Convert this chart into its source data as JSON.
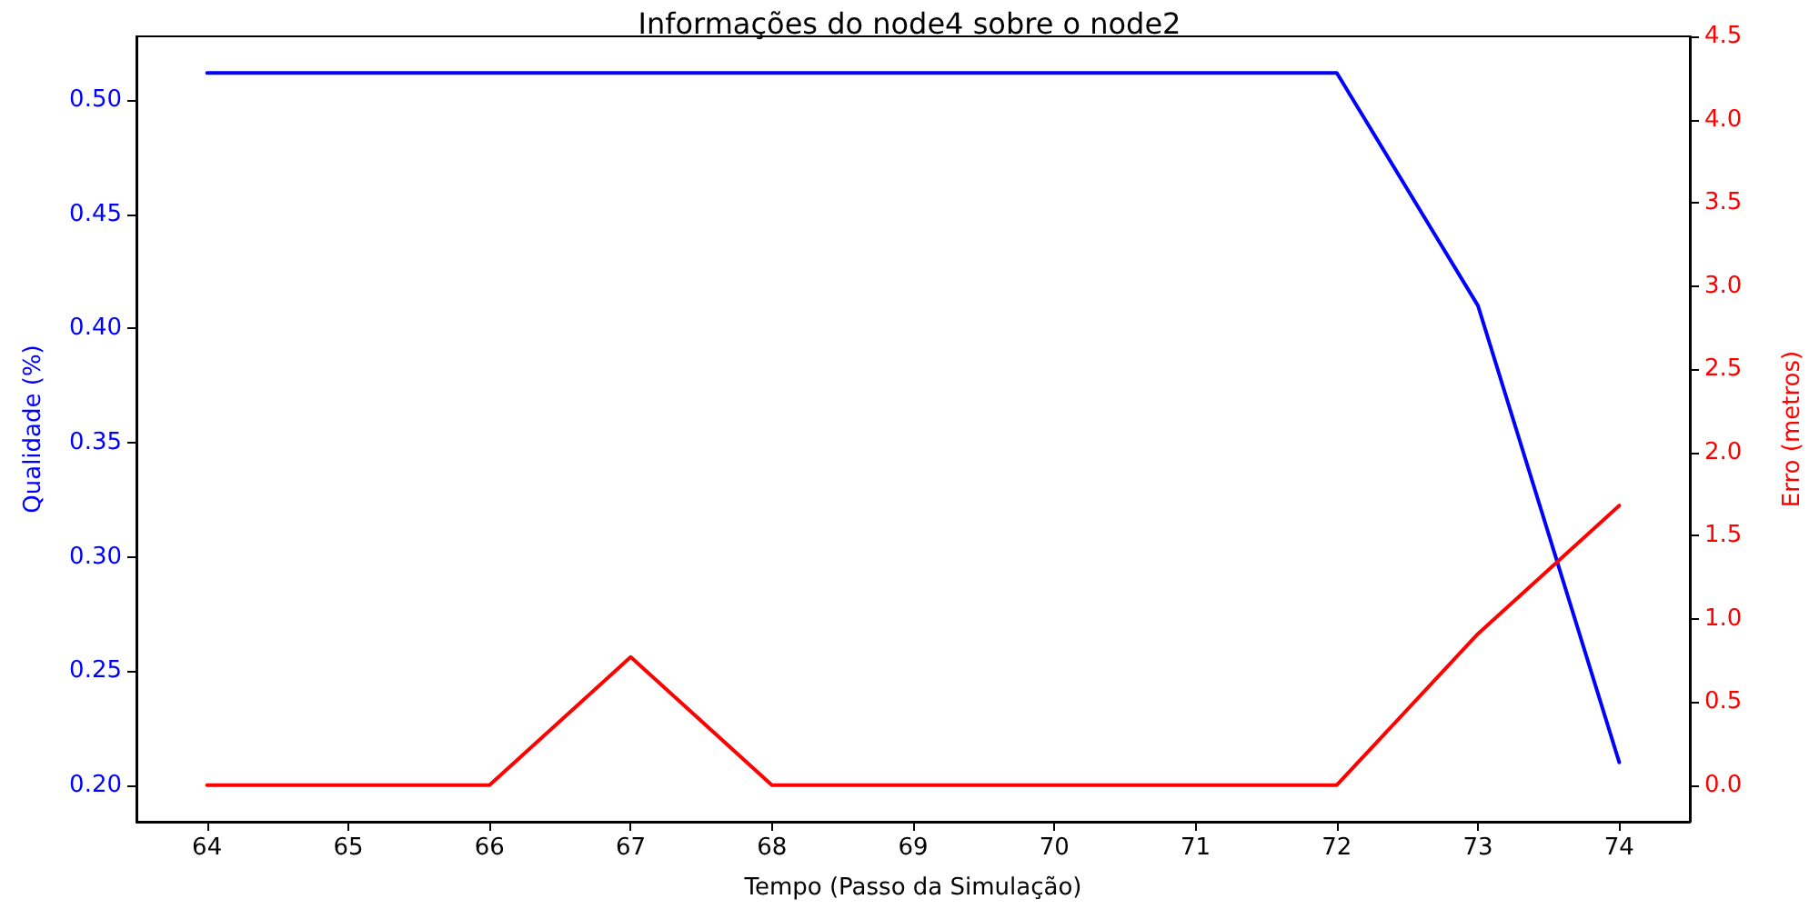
{
  "chart_data": {
    "type": "line",
    "title": "Informações do node4 sobre o node2",
    "xlabel": "Tempo (Passo da Simulação)",
    "ylabel": "Qualidade (%)",
    "y2label": "Erro (metros)",
    "x": [
      64,
      65,
      66,
      67,
      68,
      69,
      70,
      71,
      72,
      73,
      74
    ],
    "series": [
      {
        "color": "#0000ff",
        "values": [
          0.512,
          0.512,
          0.512,
          0.512,
          0.512,
          0.512,
          0.512,
          0.512,
          0.512,
          0.41,
          0.21
        ]
      },
      {
        "color": "#ff0000",
        "axis": "y2",
        "values": [
          0,
          0,
          0,
          0.77,
          0,
          0,
          0,
          0,
          0,
          0.91,
          1.68
        ]
      }
    ],
    "xlim": [
      63.5,
      74.5
    ],
    "xticks": [
      64,
      65,
      66,
      67,
      68,
      69,
      70,
      71,
      72,
      73,
      74
    ],
    "ylim": [
      0.184,
      0.528
    ],
    "yticks": [
      {
        "value": 0.2,
        "label": "0.20"
      },
      {
        "value": 0.25,
        "label": "0.25"
      },
      {
        "value": 0.3,
        "label": "0.30"
      },
      {
        "value": 0.35,
        "label": "0.35"
      },
      {
        "value": 0.4,
        "label": "0.40"
      },
      {
        "value": 0.45,
        "label": "0.45"
      },
      {
        "value": 0.5,
        "label": "0.50"
      }
    ],
    "y2lim": [
      -0.22,
      4.5
    ],
    "y2ticks": [
      {
        "value": 0,
        "label": "0.0"
      },
      {
        "value": 0.5,
        "label": "0.5"
      },
      {
        "value": 1,
        "label": "1.0"
      },
      {
        "value": 1.5,
        "label": "1.5"
      },
      {
        "value": 2,
        "label": "2.0"
      },
      {
        "value": 2.5,
        "label": "2.5"
      },
      {
        "value": 3,
        "label": "3.0"
      },
      {
        "value": 3.5,
        "label": "3.5"
      },
      {
        "value": 4,
        "label": "4.0"
      },
      {
        "value": 4.5,
        "label": "4.5"
      }
    ],
    "grid": false,
    "marker": "none",
    "line_style": "solid"
  }
}
